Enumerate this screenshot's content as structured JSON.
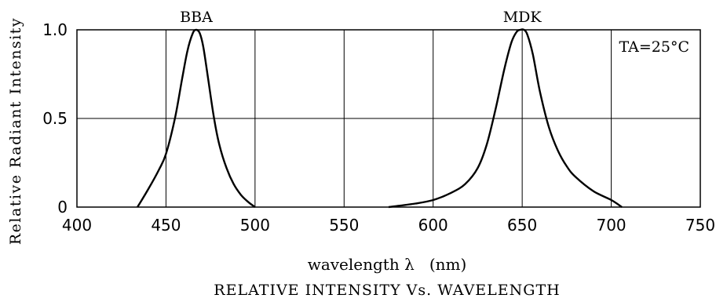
{
  "chart_data": {
    "type": "line",
    "title": "RELATIVE INTENSITY Vs. WAVELENGTH",
    "xlabel": "wavelength λ   (nm)",
    "ylabel": "Relative Radiant Intensity",
    "xlim": [
      400,
      750
    ],
    "ylim": [
      0,
      1.0
    ],
    "xticks": [
      400,
      450,
      500,
      550,
      600,
      650,
      700,
      750
    ],
    "xtick_labels": [
      "400",
      "450",
      "500",
      "550",
      "600",
      "650",
      "700",
      "750"
    ],
    "yticks": [
      0,
      0.5,
      1.0
    ],
    "ytick_labels": [
      "0",
      "0.5",
      "1.0"
    ],
    "grid": true,
    "annotation": "TA=25°C",
    "series": [
      {
        "name": "BBA",
        "color": "#000000",
        "x": [
          434,
          440,
          446,
          450,
          455,
          459,
          462,
          465,
          467,
          469,
          471,
          474,
          477,
          480,
          484,
          488,
          492,
          496,
          500
        ],
        "y": [
          0.0,
          0.1,
          0.21,
          0.3,
          0.5,
          0.72,
          0.88,
          0.98,
          1.0,
          0.98,
          0.9,
          0.7,
          0.5,
          0.35,
          0.22,
          0.13,
          0.07,
          0.03,
          0.0
        ]
      },
      {
        "name": "MDK",
        "color": "#000000",
        "x": [
          575,
          590,
          600,
          610,
          618,
          625,
          630,
          635,
          640,
          644,
          647,
          649,
          651,
          653,
          656,
          660,
          665,
          670,
          675,
          680,
          690,
          700,
          706
        ],
        "y": [
          0.0,
          0.02,
          0.04,
          0.08,
          0.13,
          0.22,
          0.35,
          0.55,
          0.78,
          0.93,
          0.99,
          1.0,
          1.0,
          0.97,
          0.86,
          0.65,
          0.45,
          0.32,
          0.23,
          0.17,
          0.09,
          0.04,
          0.0
        ]
      }
    ]
  }
}
